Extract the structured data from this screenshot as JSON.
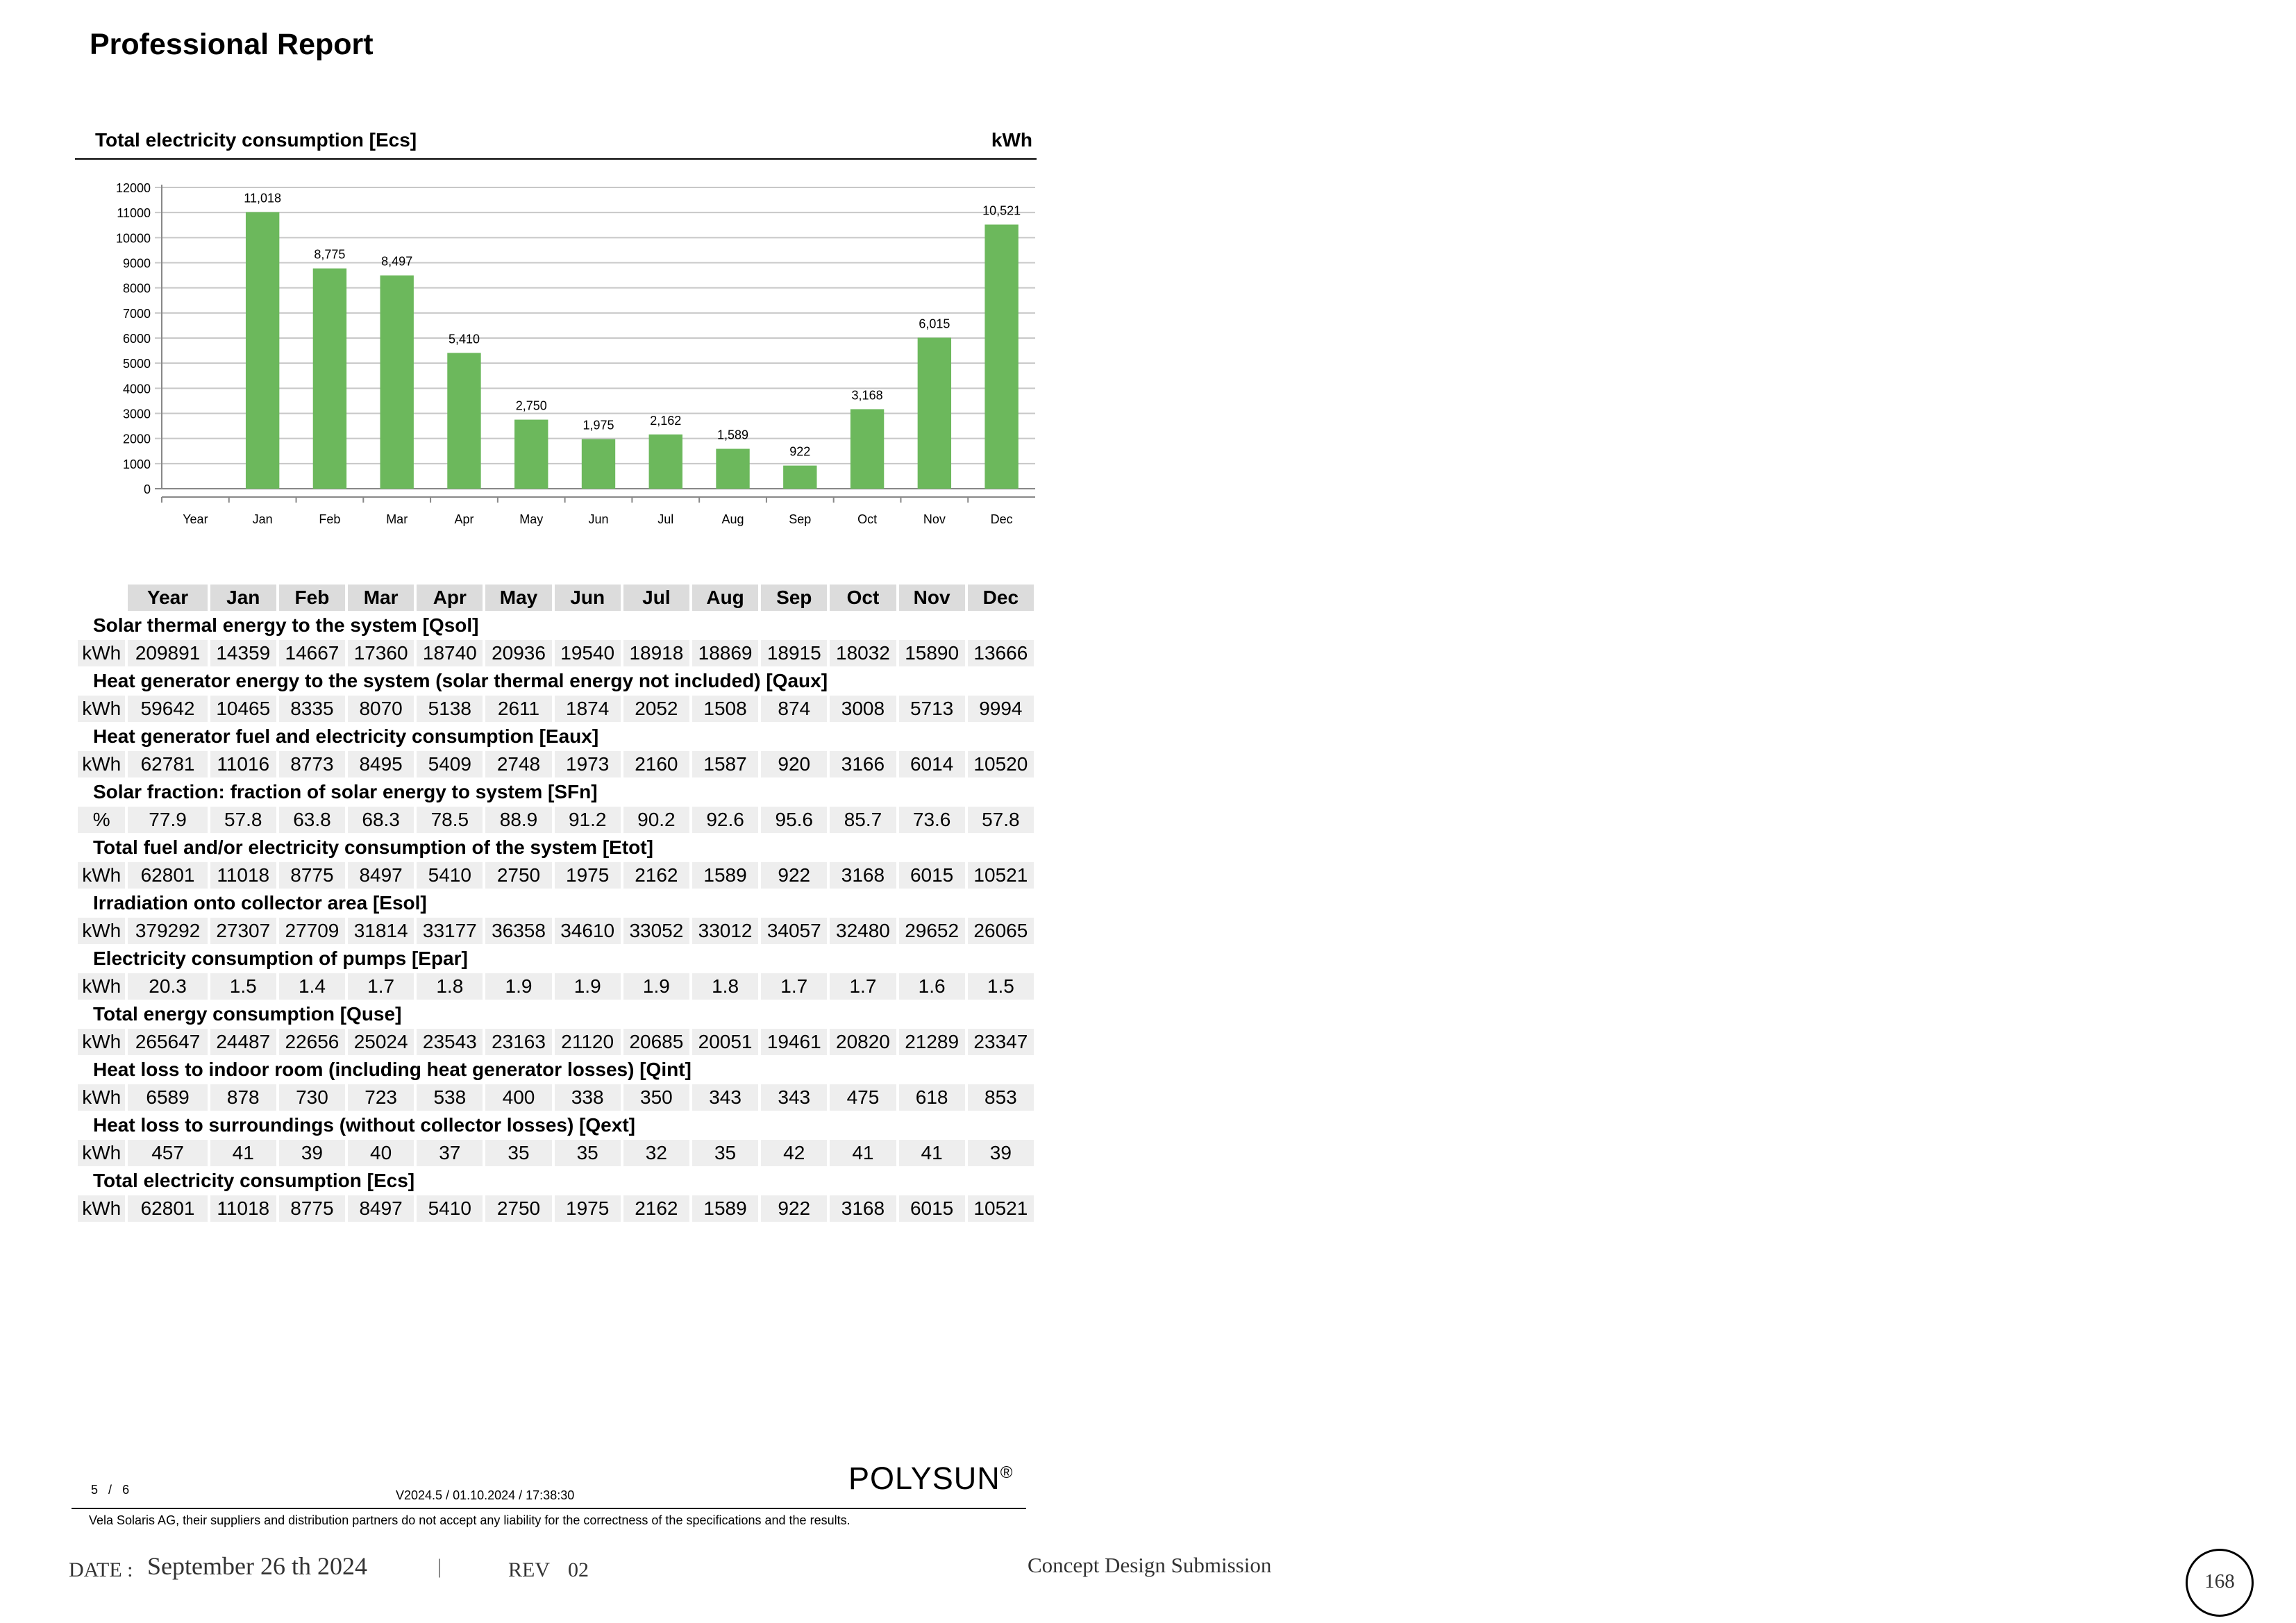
{
  "report": {
    "title": "Professional Report"
  },
  "chart_data": {
    "type": "bar",
    "title": "Total electricity consumption [Ecs]",
    "unit": "kWh",
    "categories": [
      "Year",
      "Jan",
      "Feb",
      "Mar",
      "Apr",
      "May",
      "Jun",
      "Jul",
      "Aug",
      "Sep",
      "Oct",
      "Nov",
      "Dec"
    ],
    "values": [
      null,
      11018,
      8775,
      8497,
      5410,
      2750,
      1975,
      2162,
      1589,
      922,
      3168,
      6015,
      10521
    ],
    "data_labels": [
      "",
      "11,018",
      "8,775",
      "8,497",
      "5,410",
      "2,750",
      "1,975",
      "2,162",
      "1,589",
      "922",
      "3,168",
      "6,015",
      "10,521"
    ],
    "yticks": [
      0,
      1000,
      2000,
      3000,
      4000,
      5000,
      6000,
      7000,
      8000,
      9000,
      10000,
      11000,
      12000
    ],
    "ylim": [
      0,
      12000
    ],
    "grid": true,
    "bar_color": "#6cb85c"
  },
  "table": {
    "headers": [
      "Year",
      "Jan",
      "Feb",
      "Mar",
      "Apr",
      "May",
      "Jun",
      "Jul",
      "Aug",
      "Sep",
      "Oct",
      "Nov",
      "Dec"
    ],
    "sections": [
      {
        "title": "Solar thermal energy to the system [Qsol]",
        "unit": "kWh",
        "values": [
          "209891",
          "14359",
          "14667",
          "17360",
          "18740",
          "20936",
          "19540",
          "18918",
          "18869",
          "18915",
          "18032",
          "15890",
          "13666"
        ]
      },
      {
        "title": "Heat generator energy to the system (solar thermal energy not included) [Qaux]",
        "unit": "kWh",
        "values": [
          "59642",
          "10465",
          "8335",
          "8070",
          "5138",
          "2611",
          "1874",
          "2052",
          "1508",
          "874",
          "3008",
          "5713",
          "9994"
        ]
      },
      {
        "title": "Heat generator fuel and electricity consumption [Eaux]",
        "unit": "kWh",
        "values": [
          "62781",
          "11016",
          "8773",
          "8495",
          "5409",
          "2748",
          "1973",
          "2160",
          "1587",
          "920",
          "3166",
          "6014",
          "10520"
        ]
      },
      {
        "title": "Solar fraction: fraction of solar energy to system [SFn]",
        "unit": "%",
        "values": [
          "77.9",
          "57.8",
          "63.8",
          "68.3",
          "78.5",
          "88.9",
          "91.2",
          "90.2",
          "92.6",
          "95.6",
          "85.7",
          "73.6",
          "57.8"
        ]
      },
      {
        "title": "Total fuel and/or electricity consumption of the system [Etot]",
        "unit": "kWh",
        "values": [
          "62801",
          "11018",
          "8775",
          "8497",
          "5410",
          "2750",
          "1975",
          "2162",
          "1589",
          "922",
          "3168",
          "6015",
          "10521"
        ]
      },
      {
        "title": "Irradiation onto collector area [Esol]",
        "unit": "kWh",
        "values": [
          "379292",
          "27307",
          "27709",
          "31814",
          "33177",
          "36358",
          "34610",
          "33052",
          "33012",
          "34057",
          "32480",
          "29652",
          "26065"
        ]
      },
      {
        "title": "Electricity consumption of pumps [Epar]",
        "unit": "kWh",
        "values": [
          "20.3",
          "1.5",
          "1.4",
          "1.7",
          "1.8",
          "1.9",
          "1.9",
          "1.9",
          "1.8",
          "1.7",
          "1.7",
          "1.6",
          "1.5"
        ]
      },
      {
        "title": "Total energy consumption [Quse]",
        "unit": "kWh",
        "values": [
          "265647",
          "24487",
          "22656",
          "25024",
          "23543",
          "23163",
          "21120",
          "20685",
          "20051",
          "19461",
          "20820",
          "21289",
          "23347"
        ]
      },
      {
        "title": "Heat loss to indoor room (including heat generator losses) [Qint]",
        "unit": "kWh",
        "values": [
          "6589",
          "878",
          "730",
          "723",
          "538",
          "400",
          "338",
          "350",
          "343",
          "343",
          "475",
          "618",
          "853"
        ]
      },
      {
        "title": "Heat loss to surroundings (without collector losses) [Qext]",
        "unit": "kWh",
        "values": [
          "457",
          "41",
          "39",
          "40",
          "37",
          "35",
          "35",
          "32",
          "35",
          "42",
          "41",
          "41",
          "39"
        ]
      },
      {
        "title": "Total electricity consumption [Ecs]",
        "unit": "kWh",
        "values": [
          "62801",
          "11018",
          "8775",
          "8497",
          "5410",
          "2750",
          "1975",
          "2162",
          "1589",
          "922",
          "3168",
          "6015",
          "10521"
        ]
      }
    ]
  },
  "footer": {
    "page_current": "5",
    "page_sep": "/",
    "page_total": "6",
    "version": "V2024.5 / 01.10.2024 / 17:38:30",
    "brand": "POLYSUN",
    "brand_mark": "®",
    "disclaimer": "Vela Solaris AG, their suppliers and distribution partners do not accept any liability for the correctness of the specifications and the results."
  },
  "titleblock": {
    "date_label": "DATE :",
    "date_value": "September 26 th 2024",
    "separator": "|",
    "rev_label": "REV",
    "rev_value": "02",
    "submission": "Concept Design Submission",
    "sheet_number": "168"
  }
}
